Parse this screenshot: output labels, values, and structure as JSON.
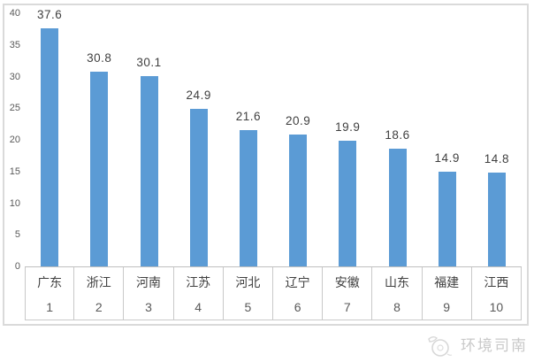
{
  "chart_data": {
    "type": "bar",
    "title": "",
    "xlabel": "",
    "ylabel": "",
    "categories": [
      "广东",
      "浙江",
      "河南",
      "江苏",
      "河北",
      "辽宁",
      "安徽",
      "山东",
      "福建",
      "江西"
    ],
    "rank_labels": [
      "1",
      "2",
      "3",
      "4",
      "5",
      "6",
      "7",
      "8",
      "9",
      "10"
    ],
    "values": [
      37.6,
      30.8,
      30.1,
      24.9,
      21.6,
      20.9,
      19.9,
      18.6,
      14.9,
      14.8
    ],
    "data_labels": [
      "37.6",
      "30.8",
      "30.1",
      "24.9",
      "21.6",
      "20.9",
      "19.9",
      "18.6",
      "14.9",
      "14.8"
    ],
    "y_ticks": [
      0,
      5,
      10,
      15,
      20,
      25,
      30,
      35,
      40
    ],
    "ylim": [
      0,
      40
    ],
    "grid": false,
    "legend_position": "none",
    "bar_color": "#5B9BD5"
  },
  "watermark": {
    "text": "环境司南",
    "icon": "compass-logo-icon"
  },
  "colors": {
    "bar": "#5B9BD5",
    "axis_line": "#bfbfbf",
    "table_border": "#c9c9c9",
    "tick_text": "#595959",
    "category_text": "#404040",
    "data_label_text": "#3f3f3f",
    "frame_border": "#dadada",
    "watermark_text": "#c9c9c9"
  }
}
